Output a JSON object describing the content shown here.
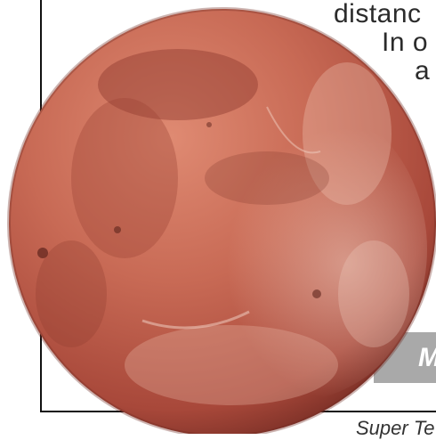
{
  "text_fragments": {
    "line1": "distanc",
    "line2": "In o",
    "line3": "a",
    "caption": "M",
    "footer": "Super Te"
  },
  "planet": {
    "icon": "mars-like-planet-image",
    "base_color": "#c86a55",
    "dark_color": "#7a2f26",
    "light_color": "#eec7b8"
  }
}
